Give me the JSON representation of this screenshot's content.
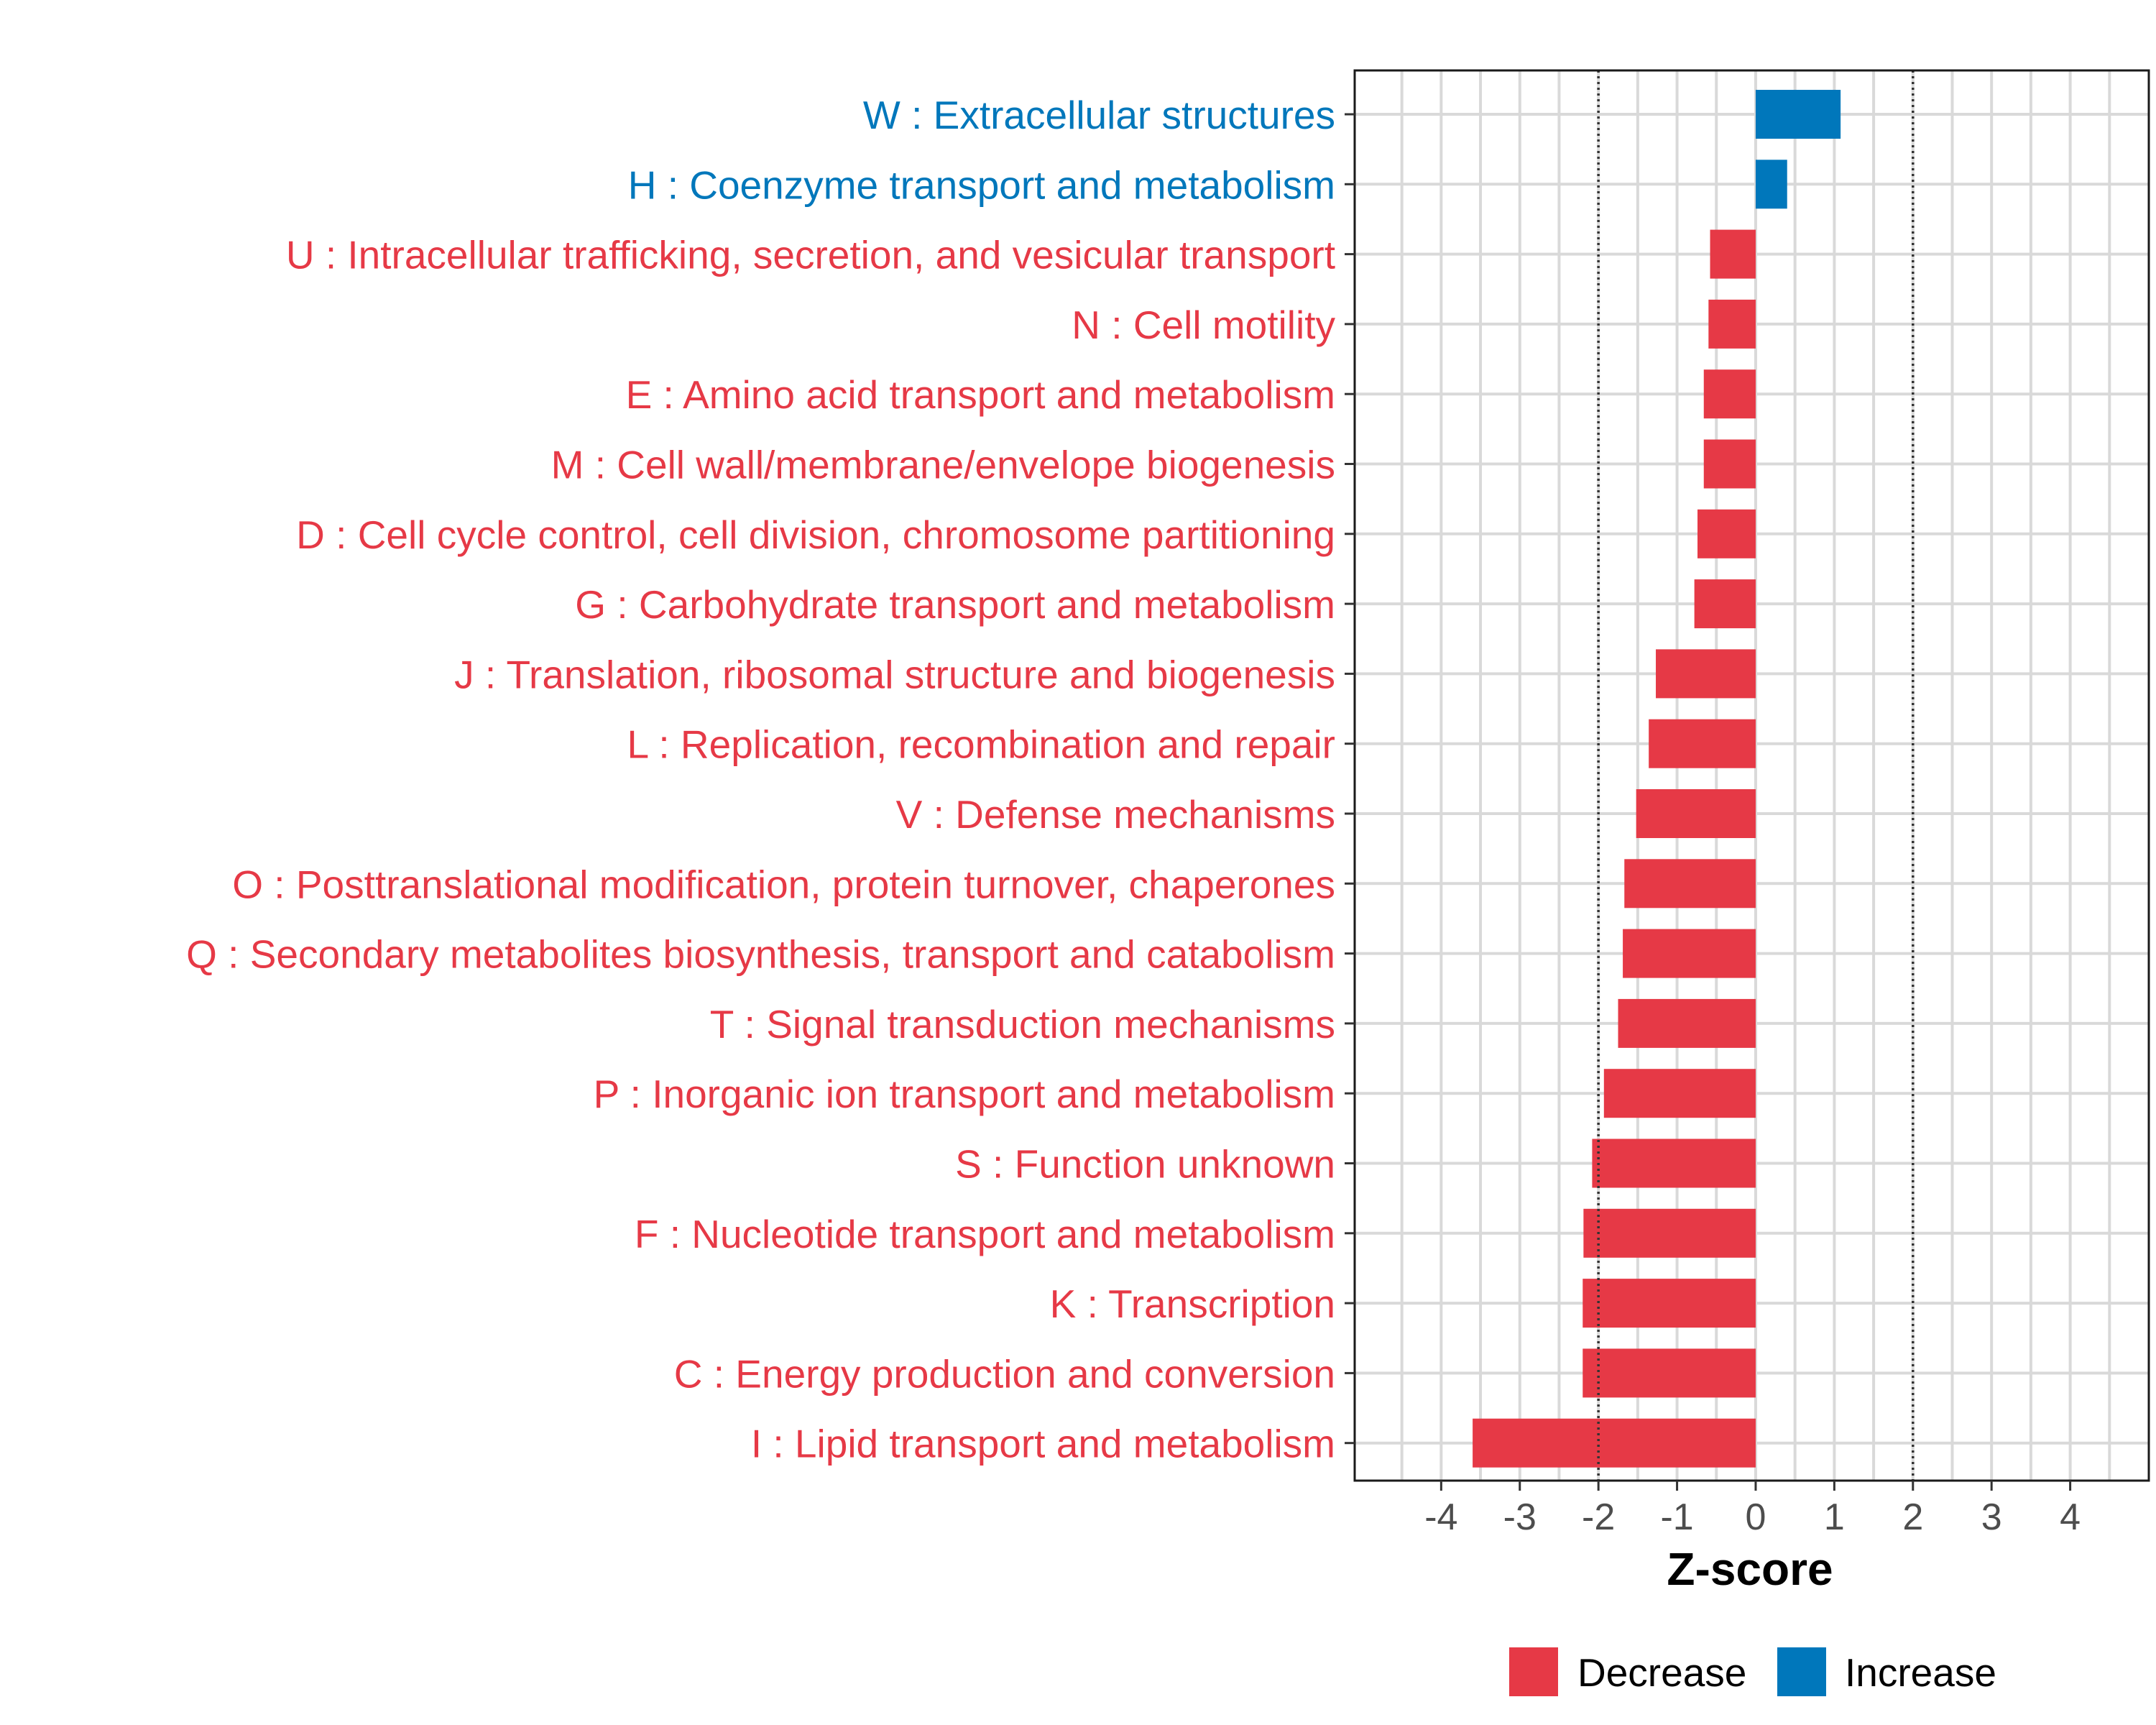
{
  "chart_data": {
    "type": "bar",
    "orientation": "horizontal",
    "xlabel": "Z-score",
    "xlim": [
      -5.1,
      5.0
    ],
    "xticks": [
      -4,
      -3,
      -2,
      -1,
      0,
      1,
      2,
      3,
      4
    ],
    "reference_lines": [
      -2,
      2
    ],
    "grid": true,
    "legend_position": "bottom",
    "categories": [
      "W : Extracellular structures",
      "H : Coenzyme transport and metabolism",
      "U : Intracellular trafficking, secretion, and vesicular transport",
      "N : Cell motility",
      "E : Amino acid transport and metabolism",
      "M : Cell wall/membrane/envelope biogenesis",
      "D : Cell cycle control, cell division, chromosome partitioning",
      "G : Carbohydrate transport and metabolism",
      "J : Translation, ribosomal structure and biogenesis",
      "L : Replication, recombination and repair",
      "V : Defense mechanisms",
      "O : Posttranslational modification, protein turnover, chaperones",
      "Q : Secondary metabolites biosynthesis, transport and catabolism",
      "T : Signal transduction mechanisms",
      "P : Inorganic ion transport and metabolism",
      "S : Function unknown",
      "F : Nucleotide transport and metabolism",
      "K : Transcription",
      "C : Energy production and conversion",
      "I : Lipid transport and metabolism"
    ],
    "values": [
      1.08,
      0.4,
      -0.58,
      -0.6,
      -0.66,
      -0.66,
      -0.74,
      -0.78,
      -1.27,
      -1.36,
      -1.52,
      -1.67,
      -1.69,
      -1.75,
      -1.93,
      -2.08,
      -2.19,
      -2.2,
      -2.2,
      -3.6
    ],
    "groups": [
      "Increase",
      "Increase",
      "Decrease",
      "Decrease",
      "Decrease",
      "Decrease",
      "Decrease",
      "Decrease",
      "Decrease",
      "Decrease",
      "Decrease",
      "Decrease",
      "Decrease",
      "Decrease",
      "Decrease",
      "Decrease",
      "Decrease",
      "Decrease",
      "Decrease",
      "Decrease"
    ],
    "legend": [
      {
        "label": "Decrease",
        "color": "#e63946"
      },
      {
        "label": "Increase",
        "color": "#0077bb"
      }
    ]
  }
}
